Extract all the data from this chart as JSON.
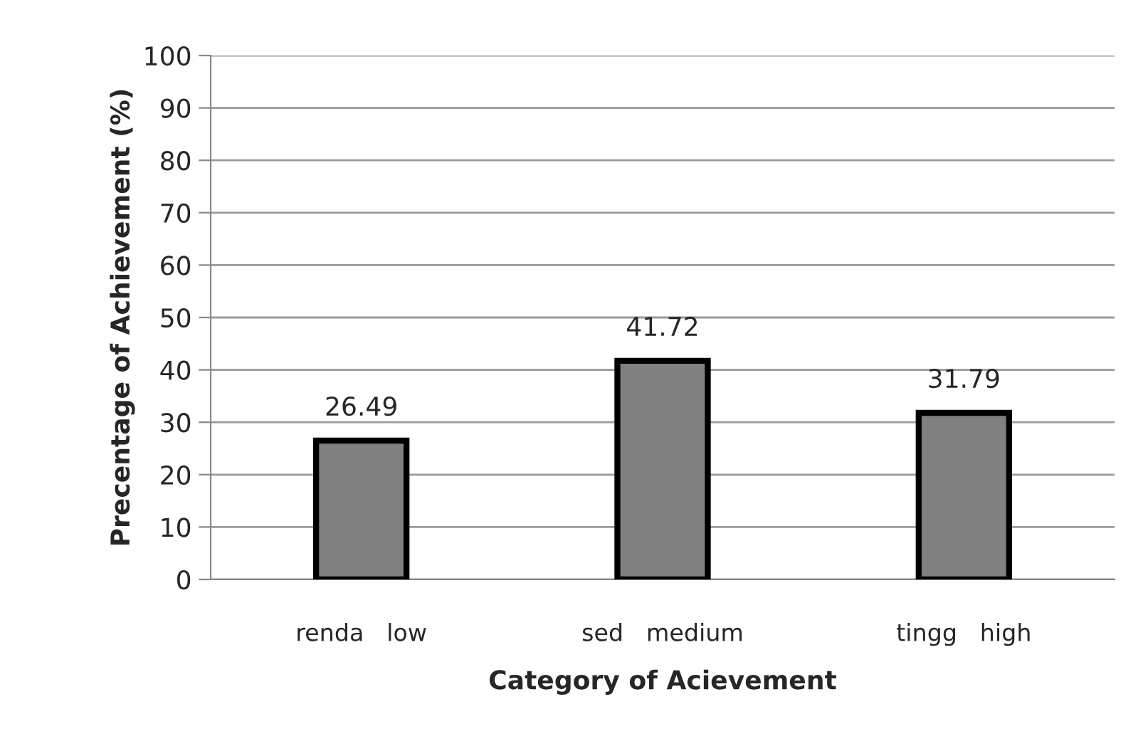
{
  "chart_data": {
    "type": "bar",
    "xlabel": "Category of Acievement",
    "ylabel": "Precentage of Achievement (%)",
    "categories": [
      "renda   low",
      "sed   medium",
      "tingg   high"
    ],
    "series": [
      {
        "color": "#808080",
        "values": [
          26.49,
          41.72,
          31.79
        ]
      }
    ],
    "data_labels": true,
    "ylim": [
      0,
      100
    ],
    "yticks": [
      0,
      10,
      20,
      30,
      40,
      50,
      60,
      70,
      80,
      90,
      100
    ],
    "grid": "y"
  }
}
